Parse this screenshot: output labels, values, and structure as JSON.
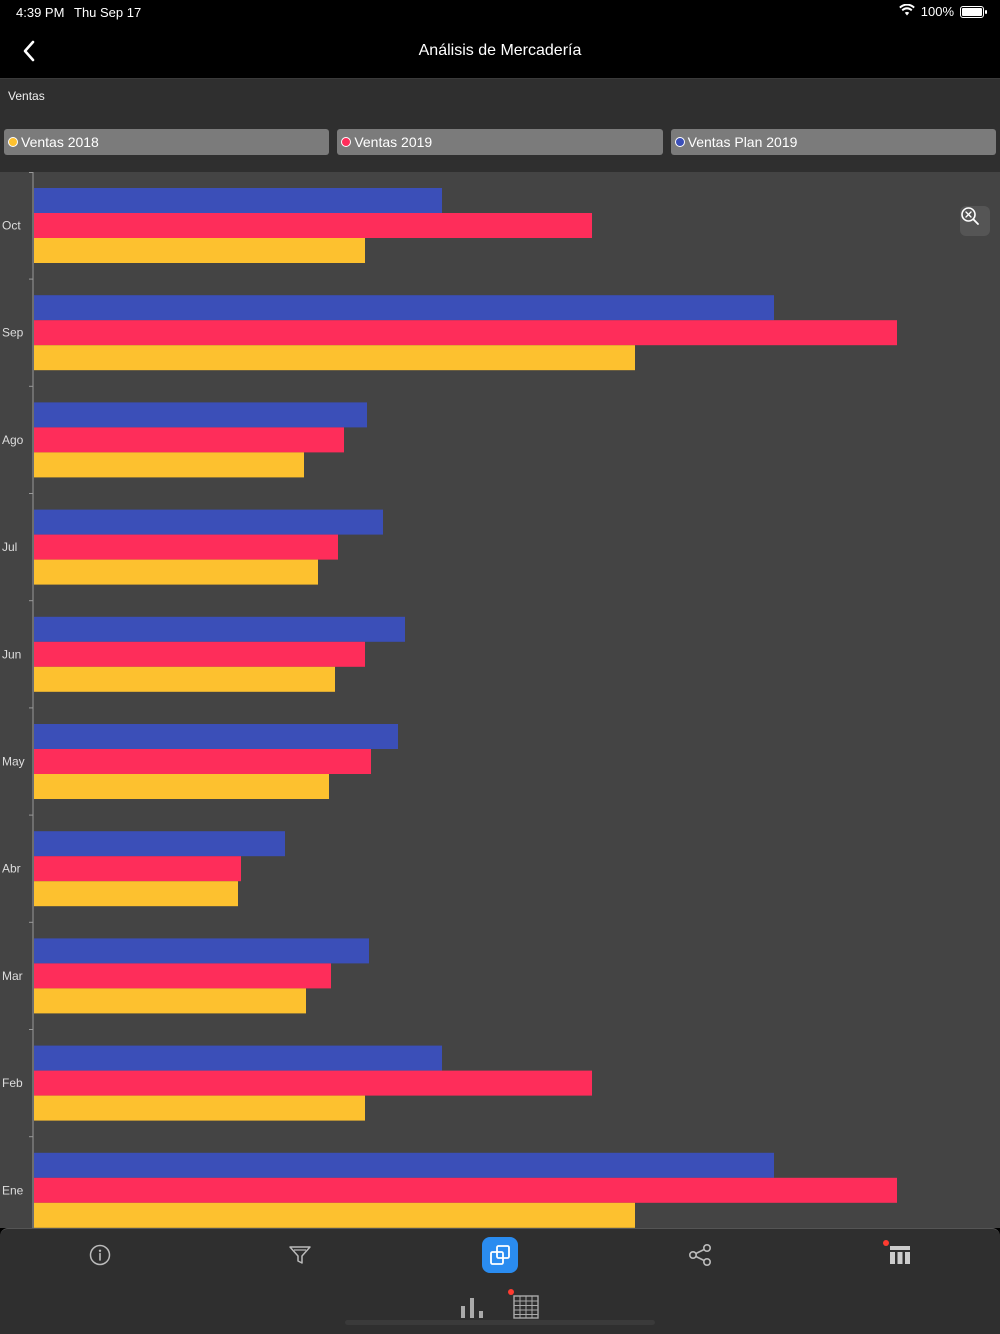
{
  "status": {
    "time": "4:39 PM",
    "date": "Thu Sep 17",
    "battery": "100%"
  },
  "nav": {
    "title": "Análisis de Mercadería"
  },
  "section_label": "Ventas",
  "legend": [
    {
      "label": "Ventas 2018",
      "color": "#fdc12f"
    },
    {
      "label": "Ventas 2019",
      "color": "#fe2d5a"
    },
    {
      "label": "Ventas Plan 2019",
      "color": "#3b4fb8"
    }
  ],
  "chart_data": {
    "type": "bar",
    "orientation": "horizontal",
    "categories": [
      "Oct",
      "Sep",
      "Ago",
      "Jul",
      "Jun",
      "May",
      "Abr",
      "Mar",
      "Feb",
      "Ene"
    ],
    "series": [
      {
        "name": "Ventas Plan 2019",
        "color": "#3b4fb8",
        "values": [
          408,
          740,
          333,
          349,
          371,
          364,
          251,
          335,
          408,
          740
        ]
      },
      {
        "name": "Ventas 2019",
        "color": "#fe2d5a",
        "values": [
          558,
          863,
          310,
          304,
          331,
          337,
          207,
          297,
          558,
          863
        ]
      },
      {
        "name": "Ventas 2018",
        "color": "#fdc12f",
        "values": [
          331,
          601,
          270,
          284,
          301,
          295,
          204,
          272,
          331,
          601
        ]
      }
    ],
    "xlim": [
      0,
      967
    ],
    "grid": false
  },
  "icons": {
    "back": "chevron-left-icon",
    "zoom": "zoom-reset-icon",
    "info": "info-icon",
    "filter": "filter-icon",
    "chart_type": "chart-type-icon",
    "share": "share-icon",
    "columns": "columns-icon",
    "bar_view": "bar-chart-icon",
    "table_view": "table-icon"
  }
}
